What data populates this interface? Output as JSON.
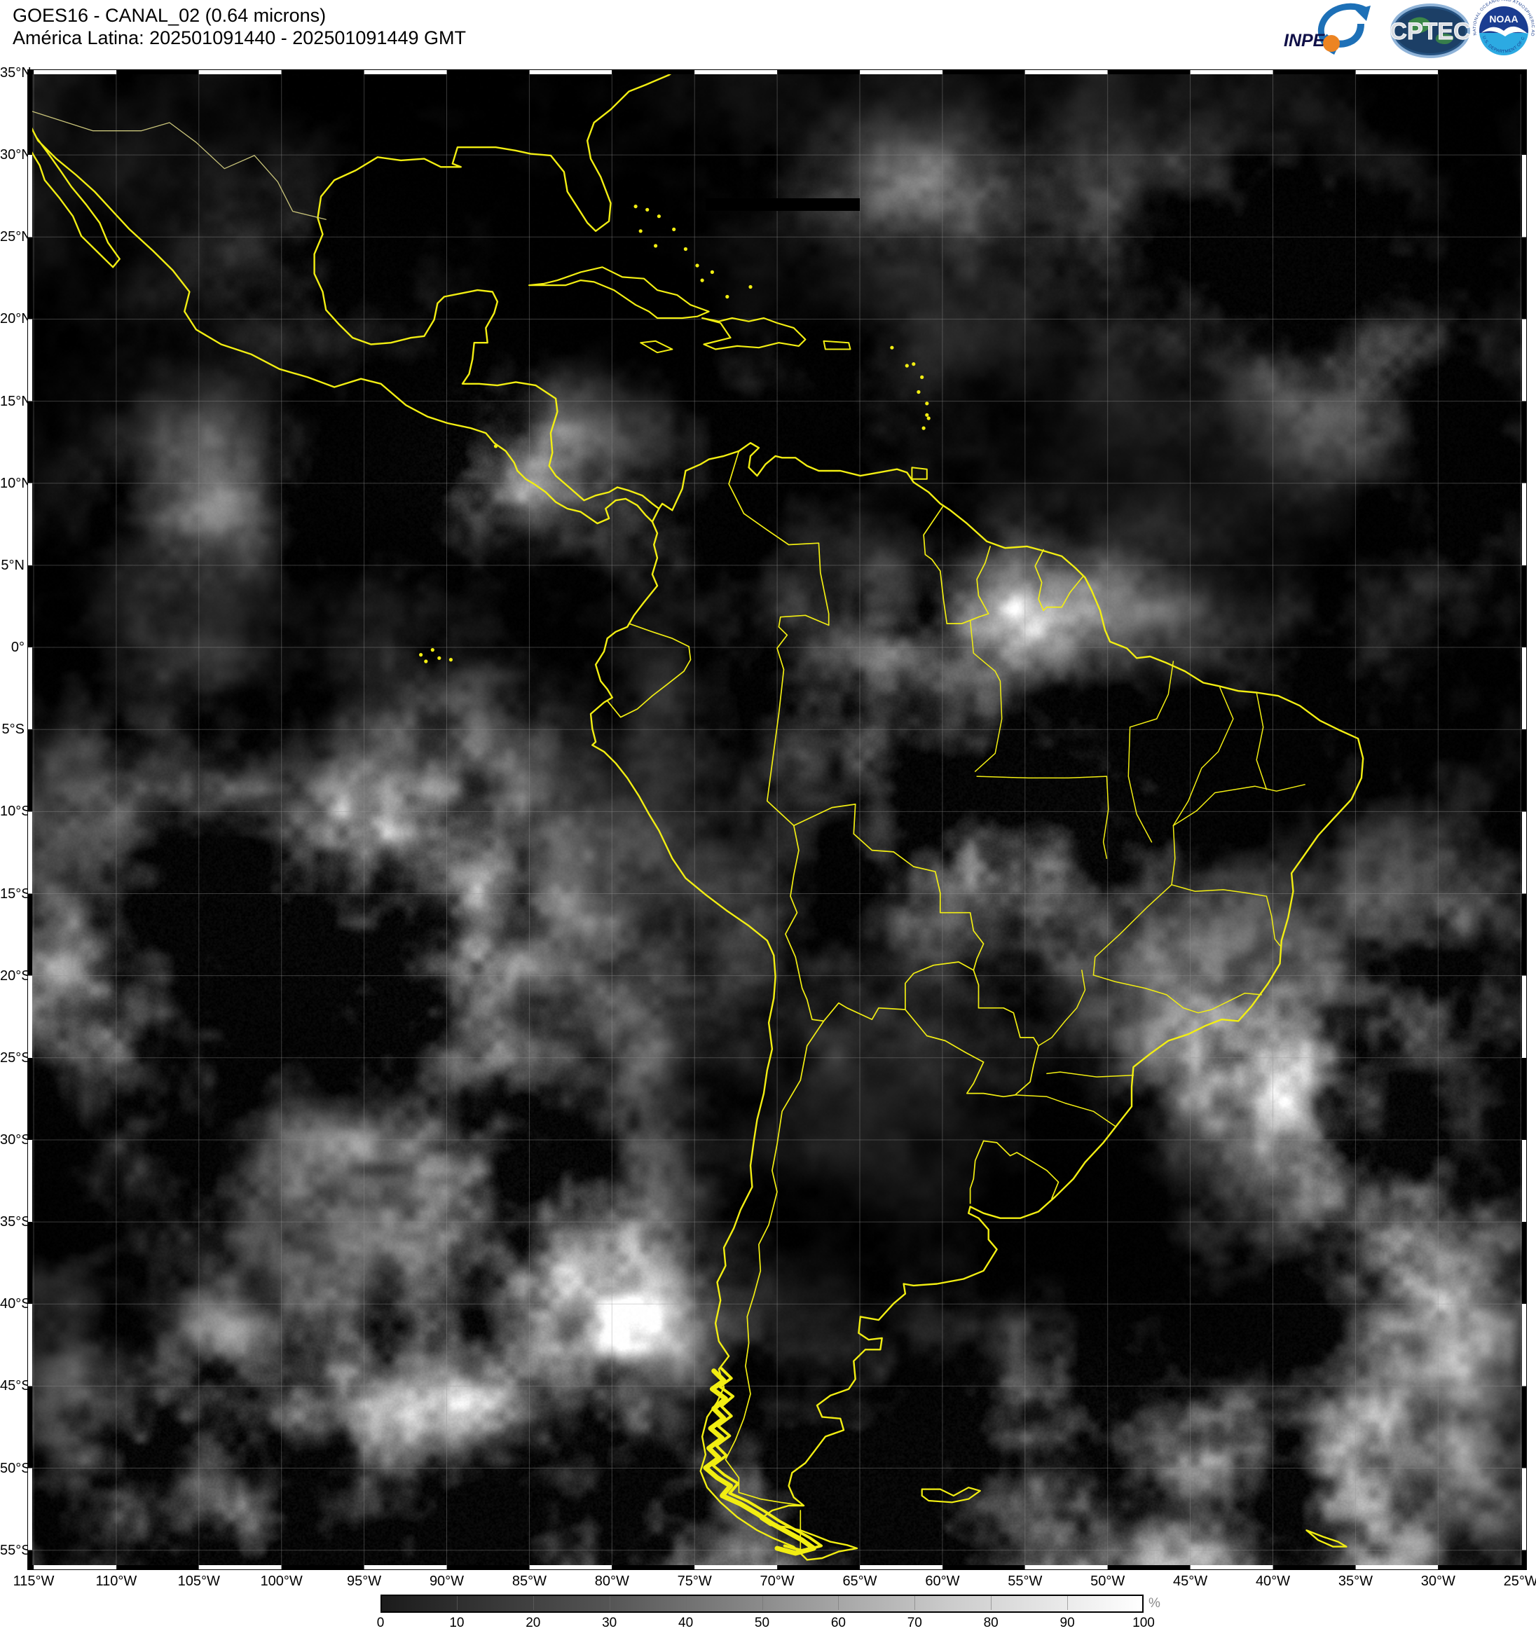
{
  "header": {
    "title": "GOES16 - CANAL_02 (0.64 microns)",
    "subtitle": "América Latina: 202501091440 - 202501091449 GMT"
  },
  "logos": {
    "inpe_label": "INPE",
    "cptec_label": "CPTEC",
    "noaa_label": "NOAA",
    "noaa_ring_top": "NATIONAL OCEANIC AND ATMOSPHERIC ADMINISTRATION",
    "noaa_ring_bottom": "U.S. DEPARTMENT OF COMMERCE"
  },
  "map": {
    "lat_labels": [
      "35°N",
      "30°N",
      "25°N",
      "20°N",
      "15°N",
      "10°N",
      "5°N",
      "0°",
      "5°S",
      "10°S",
      "15°S",
      "20°S",
      "25°S",
      "30°S",
      "35°S",
      "40°S",
      "45°S",
      "50°S",
      "55°S"
    ],
    "lon_labels": [
      "115°W",
      "110°W",
      "105°W",
      "100°W",
      "95°W",
      "90°W",
      "85°W",
      "80°W",
      "75°W",
      "70°W",
      "65°W",
      "60°W",
      "55°W",
      "50°W",
      "45°W",
      "40°W",
      "35°W",
      "30°W",
      "25°W"
    ],
    "overlay_color": "#f2ee12",
    "background_color": "#000000"
  },
  "colorbar": {
    "tick_labels": [
      "0",
      "10",
      "20",
      "30",
      "40",
      "50",
      "60",
      "70",
      "80",
      "90",
      "100"
    ],
    "unit": "%",
    "min_color": "#1b1b1b",
    "max_color": "#ffffff"
  }
}
